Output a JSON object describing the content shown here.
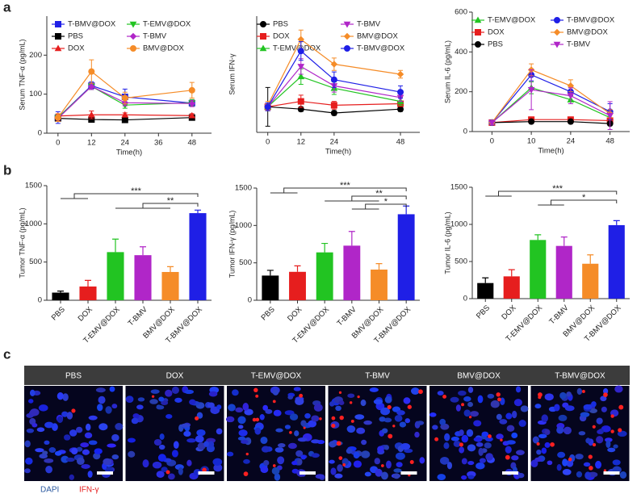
{
  "panel_labels": [
    "a",
    "b",
    "c"
  ],
  "chart_data": [
    {
      "type": "line",
      "ylabel": "Serum TNF-α (pg/mL)",
      "xlabel": "Time(h)",
      "x": [
        0,
        12,
        24,
        48
      ],
      "xlim": [
        -4,
        55
      ],
      "xticks": [
        0,
        12,
        24,
        36,
        48
      ],
      "ylim": [
        0,
        300
      ],
      "yticks": [
        0,
        100,
        200
      ],
      "series": [
        {
          "name": "T-BMV@DOX",
          "color": "#1f1fe6",
          "marker": "square",
          "values": [
            40,
            122,
            93,
            77
          ],
          "errors": [
            15,
            10,
            20,
            8
          ]
        },
        {
          "name": "PBS",
          "color": "#000000",
          "marker": "square",
          "values": [
            38,
            35,
            34,
            40
          ],
          "errors": [
            3,
            3,
            3,
            3
          ]
        },
        {
          "name": "DOX",
          "color": "#e61e1e",
          "marker": "triangle",
          "values": [
            44,
            47,
            47,
            45
          ],
          "errors": [
            5,
            10,
            5,
            5
          ]
        },
        {
          "name": "T-EMV@DOX",
          "color": "#22c422",
          "marker": "triangle-down",
          "values": [
            40,
            120,
            72,
            78
          ],
          "errors": [
            5,
            8,
            8,
            8
          ]
        },
        {
          "name": "T-BMV",
          "color": "#b026c8",
          "marker": "diamond",
          "values": [
            38,
            120,
            78,
            76
          ],
          "errors": [
            5,
            8,
            8,
            8
          ]
        },
        {
          "name": "BMV@DOX",
          "color": "#f58c28",
          "marker": "circle",
          "values": [
            40,
            158,
            90,
            110
          ],
          "errors": [
            10,
            30,
            15,
            20
          ]
        }
      ]
    },
    {
      "type": "line",
      "ylabel": "Serum IFN-γ",
      "xlabel": "Time(h)",
      "x": [
        0,
        12,
        24,
        48
      ],
      "xlim": [
        -4,
        55
      ],
      "xticks": [
        0,
        12,
        24,
        48
      ],
      "ylim": [
        0,
        150
      ],
      "series": [
        {
          "name": "PBS",
          "color": "#000000",
          "marker": "circle",
          "values": [
            33,
            30,
            25,
            30
          ],
          "errors": [
            25,
            3,
            3,
            3
          ]
        },
        {
          "name": "DOX",
          "color": "#e61e1e",
          "marker": "square",
          "values": [
            33,
            40,
            35,
            37
          ],
          "errors": [
            5,
            8,
            5,
            3
          ]
        },
        {
          "name": "T-EMV@DOX",
          "color": "#22c422",
          "marker": "triangle",
          "values": [
            33,
            72,
            57,
            40
          ],
          "errors": [
            5,
            10,
            8,
            5
          ]
        },
        {
          "name": "T-BMV",
          "color": "#b026c8",
          "marker": "triangle-down",
          "values": [
            33,
            85,
            60,
            45
          ],
          "errors": [
            5,
            10,
            8,
            5
          ]
        },
        {
          "name": "BMV@DOX",
          "color": "#f58c28",
          "marker": "diamond",
          "values": [
            35,
            120,
            88,
            75
          ],
          "errors": [
            5,
            12,
            8,
            5
          ]
        },
        {
          "name": "T-BMV@DOX",
          "color": "#1f1fe6",
          "marker": "circle",
          "values": [
            33,
            105,
            68,
            52
          ],
          "errors": [
            5,
            12,
            10,
            8
          ]
        }
      ]
    },
    {
      "type": "line",
      "ylabel": "Serum IL-6 (pg/mL)",
      "xlabel": "Time(h)",
      "categories": [
        "0",
        "10",
        "24",
        "48"
      ],
      "ylim": [
        0,
        600
      ],
      "yticks": [
        0,
        200,
        400,
        600
      ],
      "series": [
        {
          "name": "T-EMV@DOX",
          "color": "#22c422",
          "marker": "triangle",
          "values": [
            45,
            220,
            160,
            70
          ],
          "errors": [
            10,
            30,
            20,
            20
          ]
        },
        {
          "name": "DOX",
          "color": "#e61e1e",
          "marker": "square",
          "values": [
            45,
            60,
            60,
            55
          ],
          "errors": [
            10,
            10,
            10,
            10
          ]
        },
        {
          "name": "PBS",
          "color": "#000000",
          "marker": "circle",
          "values": [
            45,
            50,
            50,
            40
          ],
          "errors": [
            10,
            10,
            10,
            10
          ]
        },
        {
          "name": "T-BMV@DOX",
          "color": "#1f1fe6",
          "marker": "circle",
          "values": [
            45,
            285,
            200,
            100
          ],
          "errors": [
            10,
            30,
            20,
            40
          ]
        },
        {
          "name": "BMV@DOX",
          "color": "#f58c28",
          "marker": "diamond",
          "values": [
            45,
            310,
            230,
            90
          ],
          "errors": [
            10,
            30,
            30,
            20
          ]
        },
        {
          "name": "T-BMV",
          "color": "#b026c8",
          "marker": "triangle-down",
          "values": [
            45,
            210,
            180,
            80
          ],
          "errors": [
            10,
            100,
            40,
            70
          ]
        }
      ]
    },
    {
      "type": "bar",
      "ylabel": "Tumor TNF-α (pg/mL)",
      "categories": [
        "PBS",
        "DOX",
        "T-EMV@DOX",
        "T-BMV",
        "BMV@DOX",
        "T-BMV@DOX"
      ],
      "colors": [
        "#000000",
        "#e61e1e",
        "#22c422",
        "#b026c8",
        "#f58c28",
        "#1f1fe6"
      ],
      "values": [
        100,
        180,
        630,
        590,
        370,
        1140
      ],
      "errors": [
        20,
        80,
        170,
        110,
        70,
        40
      ],
      "ylim": [
        0,
        1500
      ],
      "yticks": [
        0,
        500,
        1000,
        1500
      ],
      "significance": [
        "***",
        "**"
      ]
    },
    {
      "type": "bar",
      "ylabel": "Tumor IFN-γ (pg/mL)",
      "categories": [
        "PBS",
        "DOX",
        "T-EMV@DOX",
        "T-BMV",
        "BMV@DOX",
        "T-BMV@DOX"
      ],
      "colors": [
        "#000000",
        "#e61e1e",
        "#22c422",
        "#b026c8",
        "#f58c28",
        "#1f1fe6"
      ],
      "values": [
        330,
        380,
        640,
        730,
        410,
        1150
      ],
      "errors": [
        70,
        80,
        120,
        190,
        80,
        110
      ],
      "ylim": [
        0,
        1500
      ],
      "yticks": [
        0,
        500,
        1000,
        1500
      ],
      "significance": [
        "***",
        "**",
        "*"
      ]
    },
    {
      "type": "bar",
      "ylabel": "Tumor IL-6 (pg/mL)",
      "categories": [
        "PBS",
        "DOX",
        "T-EMV@DOX",
        "T-BMV",
        "BMV@DOX",
        "T-BMV@DOX"
      ],
      "colors": [
        "#000000",
        "#e61e1e",
        "#22c422",
        "#b026c8",
        "#f58c28",
        "#1f1fe6"
      ],
      "values": [
        210,
        300,
        790,
        710,
        470,
        990
      ],
      "errors": [
        70,
        90,
        70,
        120,
        120,
        60
      ],
      "ylim": [
        0,
        1500
      ],
      "yticks": [
        0,
        500,
        1000,
        1500
      ],
      "significance": [
        "***",
        "*"
      ]
    }
  ],
  "micrographs": {
    "labels": [
      "PBS",
      "DOX",
      "T-EMV@DOX",
      "T-BMV",
      "BMV@DOX",
      "T-BMV@DOX"
    ],
    "legend": [
      "DAPI",
      "IFN-γ"
    ]
  }
}
